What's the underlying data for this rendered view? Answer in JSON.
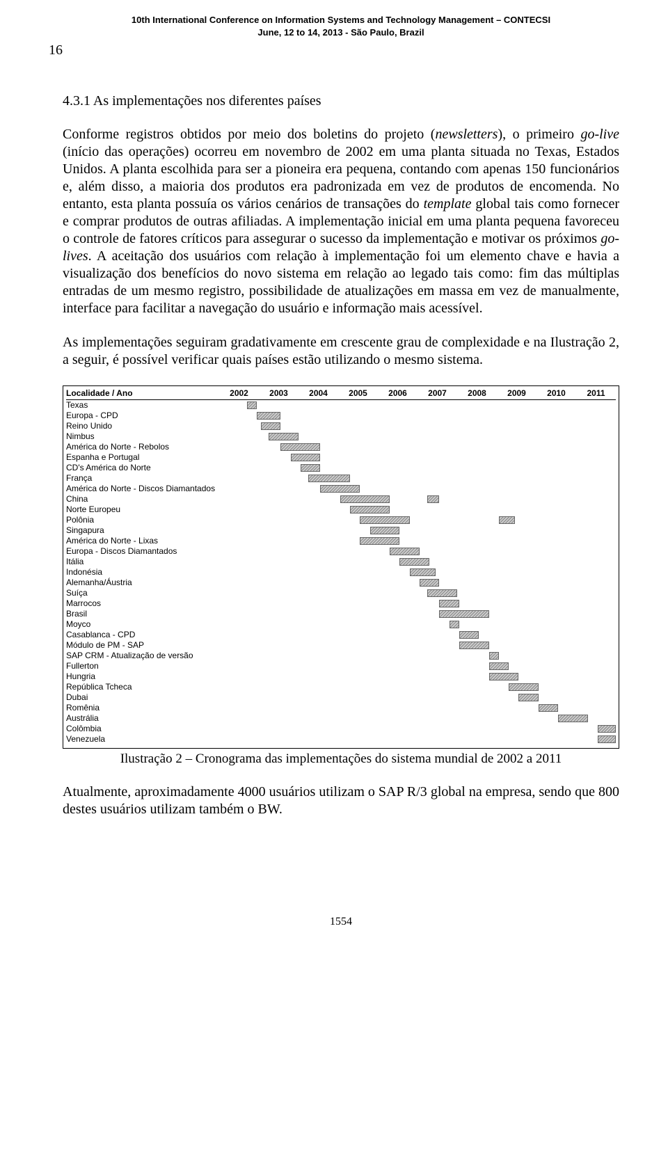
{
  "header": {
    "line1": "10th International Conference on Information Systems and Technology Management – CONTECSI",
    "line2": "June, 12 to 14, 2013 - São Paulo, Brazil"
  },
  "page_side_no": "16",
  "section_title": "4.3.1 As implementações nos diferentes países",
  "para1_a": "Conforme registros obtidos por meio dos boletins do projeto (",
  "para1_b": "newsletters",
  "para1_c": "), o primeiro ",
  "para1_d": "go-live",
  "para1_e": " (início das operações) ocorreu em novembro de 2002 em uma planta situada no Texas, Estados Unidos. A planta escolhida para ser a pioneira era pequena, contando com apenas 150 funcionários e, além disso, a maioria dos produtos era padronizada em vez de produtos de encomenda. No entanto, esta planta possuía os vários cenários de transações do ",
  "para1_f": "template",
  "para1_g": " global tais como fornecer e comprar produtos de outras afiliadas. A implementação inicial em uma planta pequena favoreceu o controle de fatores críticos para assegurar o sucesso da implementação e motivar os próximos ",
  "para1_h": "go-lives",
  "para1_i": ". A aceitação dos usuários com relação à implementação foi um elemento chave e havia a visualização dos benefícios do novo sistema em relação ao legado tais como: fim das múltiplas entradas de um mesmo registro, possibilidade de atualizações em massa em vez de manualmente, interface para facilitar a navegação do usuário e informação mais acessível.",
  "para2": "As implementações seguiram gradativamente em crescente grau de complexidade e na Ilustração 2, a seguir, é possível verificar quais países estão utilizando o mesmo sistema.",
  "gantt": {
    "label_head": "Localidade / Ano",
    "years": [
      "2002",
      "2003",
      "2004",
      "2005",
      "2006",
      "2007",
      "2008",
      "2009",
      "2010",
      "2011"
    ],
    "x_domain": {
      "start": 2002,
      "end": 2012
    },
    "bar_fill": "hatched-gray",
    "rows": [
      {
        "label": "Texas",
        "bars": [
          {
            "start": 2002.7,
            "end": 2002.95
          }
        ]
      },
      {
        "label": "Europa - CPD",
        "bars": [
          {
            "start": 2002.95,
            "end": 2003.55
          }
        ]
      },
      {
        "label": "Reino Unido",
        "bars": [
          {
            "start": 2003.05,
            "end": 2003.55
          }
        ]
      },
      {
        "label": "Nimbus",
        "bars": [
          {
            "start": 2003.25,
            "end": 2004.0
          }
        ]
      },
      {
        "label": "América do Norte - Rebolos",
        "bars": [
          {
            "start": 2003.55,
            "end": 2004.55
          }
        ]
      },
      {
        "label": "Espanha e Portugal",
        "bars": [
          {
            "start": 2003.8,
            "end": 2004.55
          }
        ]
      },
      {
        "label": "CD's América do Norte",
        "bars": [
          {
            "start": 2004.05,
            "end": 2004.55
          }
        ]
      },
      {
        "label": "França",
        "bars": [
          {
            "start": 2004.25,
            "end": 2005.3
          }
        ]
      },
      {
        "label": "América do Norte - Discos Diamantados",
        "bars": [
          {
            "start": 2004.55,
            "end": 2005.55
          }
        ]
      },
      {
        "label": "China",
        "bars": [
          {
            "start": 2005.05,
            "end": 2006.3
          },
          {
            "start": 2007.25,
            "end": 2007.55
          }
        ]
      },
      {
        "label": "Norte Europeu",
        "bars": [
          {
            "start": 2005.3,
            "end": 2006.3
          }
        ]
      },
      {
        "label": "Polônia",
        "bars": [
          {
            "start": 2005.55,
            "end": 2006.8
          },
          {
            "start": 2009.05,
            "end": 2009.45
          }
        ]
      },
      {
        "label": "Singapura",
        "bars": [
          {
            "start": 2005.8,
            "end": 2006.55
          }
        ]
      },
      {
        "label": "América do Norte - Lixas",
        "bars": [
          {
            "start": 2005.55,
            "end": 2006.55
          }
        ]
      },
      {
        "label": "Europa - Discos Diamantados",
        "bars": [
          {
            "start": 2006.3,
            "end": 2007.05
          }
        ]
      },
      {
        "label": "Itália",
        "bars": [
          {
            "start": 2006.55,
            "end": 2007.3
          }
        ]
      },
      {
        "label": "Indonésia",
        "bars": [
          {
            "start": 2006.8,
            "end": 2007.45
          }
        ]
      },
      {
        "label": "Alemanha/Áustria",
        "bars": [
          {
            "start": 2007.05,
            "end": 2007.55
          }
        ]
      },
      {
        "label": "Suíça",
        "bars": [
          {
            "start": 2007.25,
            "end": 2008.0
          }
        ]
      },
      {
        "label": "Marrocos",
        "bars": [
          {
            "start": 2007.55,
            "end": 2008.05
          }
        ]
      },
      {
        "label": "Brasil",
        "bars": [
          {
            "start": 2007.55,
            "end": 2008.8
          }
        ]
      },
      {
        "label": "Moyco",
        "bars": [
          {
            "start": 2007.8,
            "end": 2008.05
          }
        ]
      },
      {
        "label": "Casablanca - CPD",
        "bars": [
          {
            "start": 2008.05,
            "end": 2008.55
          }
        ]
      },
      {
        "label": "Módulo de PM - SAP",
        "bars": [
          {
            "start": 2008.05,
            "end": 2008.8
          }
        ]
      },
      {
        "label": "SAP CRM - Atualização de versão",
        "bars": [
          {
            "start": 2008.8,
            "end": 2009.05
          }
        ]
      },
      {
        "label": "Fullerton",
        "bars": [
          {
            "start": 2008.8,
            "end": 2009.3
          }
        ]
      },
      {
        "label": "Hungria",
        "bars": [
          {
            "start": 2008.8,
            "end": 2009.55
          }
        ]
      },
      {
        "label": "República Tcheca",
        "bars": [
          {
            "start": 2009.3,
            "end": 2010.05
          }
        ]
      },
      {
        "label": "Dubai",
        "bars": [
          {
            "start": 2009.55,
            "end": 2010.05
          }
        ]
      },
      {
        "label": "Romênia",
        "bars": [
          {
            "start": 2010.05,
            "end": 2010.55
          }
        ]
      },
      {
        "label": "Austrália",
        "bars": [
          {
            "start": 2010.55,
            "end": 2011.3
          }
        ]
      },
      {
        "label": "Colômbia",
        "bars": [
          {
            "start": 2011.55,
            "end": 2012.0
          }
        ]
      },
      {
        "label": "Venezuela",
        "bars": [
          {
            "start": 2011.55,
            "end": 2012.0
          }
        ]
      }
    ]
  },
  "caption": "Ilustração 2 – Cronograma das implementações do sistema mundial de 2002 a 2011",
  "para3": "Atualmente, aproximadamente 4000 usuários utilizam o SAP R/3 global na empresa, sendo que 800 destes usuários utilizam também o BW.",
  "footer_page": "1554"
}
